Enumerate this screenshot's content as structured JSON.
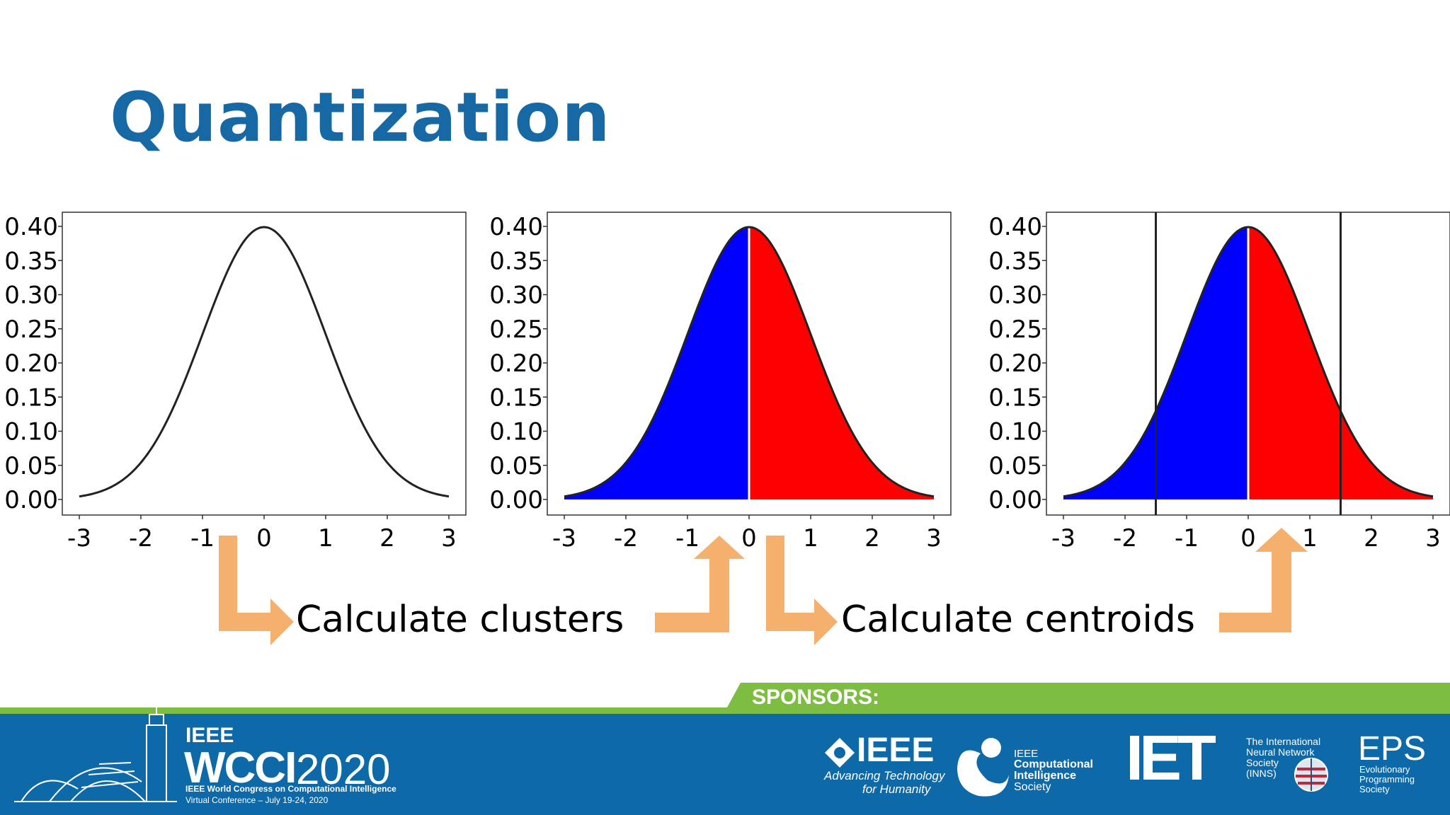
{
  "slide": {
    "title": "Quantization",
    "labels": {
      "clusters": "Calculate clusters",
      "centroids": "Calculate centroids"
    }
  },
  "colors": {
    "title": "#1769a6",
    "cluster_left": "#0000ff",
    "cluster_right": "#ff0000",
    "arrow": "#f5b06e",
    "footer_blue": "#0d69a8",
    "footer_green": "#7cbd42"
  },
  "chart_data": [
    {
      "type": "area",
      "x": [
        -3,
        -2.5,
        -2,
        -1.5,
        -1,
        -0.5,
        0,
        0.5,
        1,
        1.5,
        2,
        2.5,
        3
      ],
      "series": [
        {
          "values": [
            0.004,
            0.018,
            0.054,
            0.13,
            0.242,
            0.352,
            0.399,
            0.352,
            0.242,
            0.13,
            0.054,
            0.018,
            0.004
          ]
        }
      ],
      "xticks": [
        "-3",
        "-2",
        "-1",
        "0",
        "1",
        "2",
        "3"
      ],
      "yticks": [
        "0.00",
        "0.05",
        "0.10",
        "0.15",
        "0.20",
        "0.25",
        "0.30",
        "0.35",
        "0.40"
      ],
      "xlim": [
        -3,
        3
      ],
      "ylim": [
        0,
        0.4
      ],
      "fill": "none",
      "split_x": null,
      "vlines": []
    },
    {
      "type": "area",
      "x": [
        -3,
        -2.5,
        -2,
        -1.5,
        -1,
        -0.5,
        0,
        0.5,
        1,
        1.5,
        2,
        2.5,
        3
      ],
      "series": [
        {
          "values": [
            0.004,
            0.018,
            0.054,
            0.13,
            0.242,
            0.352,
            0.399,
            0.352,
            0.242,
            0.13,
            0.054,
            0.018,
            0.004
          ]
        }
      ],
      "xticks": [
        "-3",
        "-2",
        "-1",
        "0",
        "1",
        "2",
        "3"
      ],
      "yticks": [
        "0.00",
        "0.05",
        "0.10",
        "0.15",
        "0.20",
        "0.25",
        "0.30",
        "0.35",
        "0.40"
      ],
      "xlim": [
        -3,
        3
      ],
      "ylim": [
        0,
        0.4
      ],
      "fill": "split",
      "split_x": 0,
      "vlines": []
    },
    {
      "type": "area",
      "x": [
        -3,
        -2.5,
        -2,
        -1.5,
        -1,
        -0.5,
        0,
        0.5,
        1,
        1.5,
        2,
        2.5,
        3
      ],
      "series": [
        {
          "values": [
            0.004,
            0.018,
            0.054,
            0.13,
            0.242,
            0.352,
            0.399,
            0.352,
            0.242,
            0.13,
            0.054,
            0.018,
            0.004
          ]
        }
      ],
      "xticks": [
        "-3",
        "-2",
        "-1",
        "0",
        "1",
        "2",
        "3"
      ],
      "yticks": [
        "0.00",
        "0.05",
        "0.10",
        "0.15",
        "0.20",
        "0.25",
        "0.30",
        "0.35",
        "0.40"
      ],
      "xlim": [
        -3,
        3
      ],
      "ylim": [
        0,
        0.4
      ],
      "fill": "split",
      "split_x": 0,
      "vlines": [
        -1.5,
        1.5
      ]
    }
  ],
  "footer": {
    "sponsors_label": "SPONSORS:",
    "wcci": {
      "ieee": "IEEE",
      "name": "WCCI",
      "year": "2020",
      "full_name": "IEEE World Congress on Computational Intelligence",
      "conference": "Virtual Conference – July 19-24, 2020"
    },
    "ieee": {
      "name": "IEEE",
      "tagline_1": "Advancing Technology",
      "tagline_2": "for Humanity"
    },
    "cis": {
      "line1": "IEEE",
      "line2": "Computational",
      "line3": "Intelligence",
      "line4": "Society"
    },
    "iet": {
      "name": "IET"
    },
    "inns": {
      "line1": "The International",
      "line2": "Neural Network",
      "line3": "Society",
      "line4": "(INNS)"
    },
    "eps": {
      "name": "EPS",
      "line1": "Evolutionary",
      "line2": "Programming",
      "line3": "Society"
    }
  }
}
